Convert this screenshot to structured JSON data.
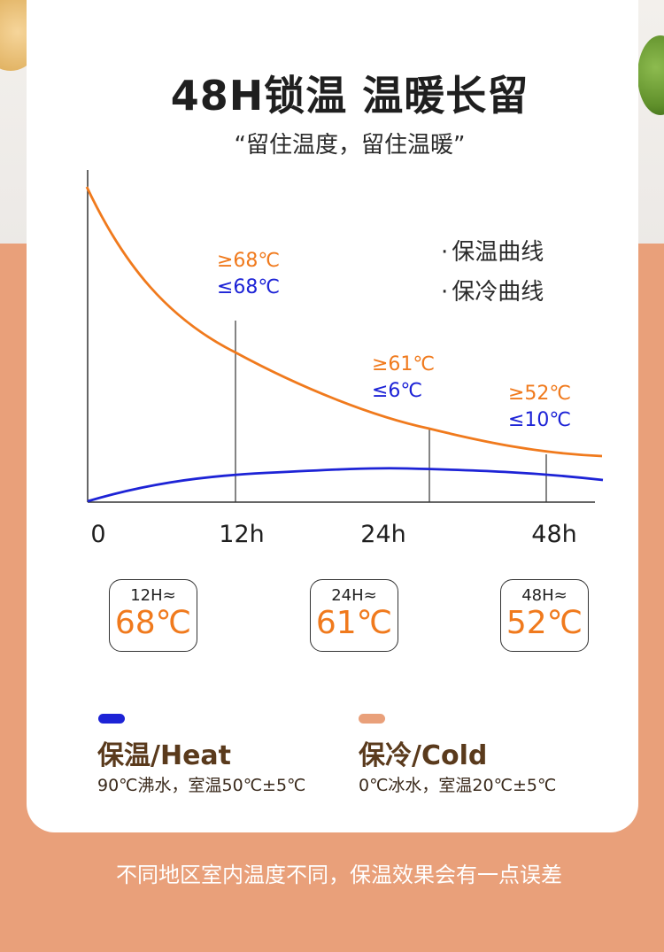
{
  "header": {
    "title": "48H锁温 温暖长留",
    "subtitle": "“留住温度，留住温暖”"
  },
  "legend": {
    "items": [
      {
        "label": "保温曲线",
        "bullet": "·"
      },
      {
        "label": "保冷曲线",
        "bullet": "·"
      }
    ]
  },
  "chart_data": {
    "type": "line",
    "x_ticks": [
      "0",
      "12h",
      "24h",
      "48h"
    ],
    "series": [
      {
        "name": "保温曲线",
        "color": "#f07a1d"
      },
      {
        "name": "保冷曲线",
        "color": "#1d23d6"
      }
    ],
    "annotations": [
      {
        "hot": "≥68℃",
        "cold": "≤68℃"
      },
      {
        "hot": "≥61℃",
        "cold": "≤6℃"
      },
      {
        "hot": "≥52℃",
        "cold": "≤10℃"
      }
    ]
  },
  "summary_boxes": [
    {
      "time": "12H≈",
      "temp": "68℃"
    },
    {
      "time": "24H≈",
      "temp": "61℃"
    },
    {
      "time": "48H≈",
      "temp": "52℃"
    }
  ],
  "modes": {
    "heat": {
      "title": "保温/Heat",
      "desc": "90℃沸水，室温50℃±5℃",
      "color": "#1d23d6"
    },
    "cold": {
      "title": "保冷/Cold",
      "desc": "0℃冰水，室温20℃±5℃",
      "color": "#e9a07a"
    }
  },
  "footer": {
    "note": "不同地区室内温度不同，保温效果会有一点误差"
  }
}
